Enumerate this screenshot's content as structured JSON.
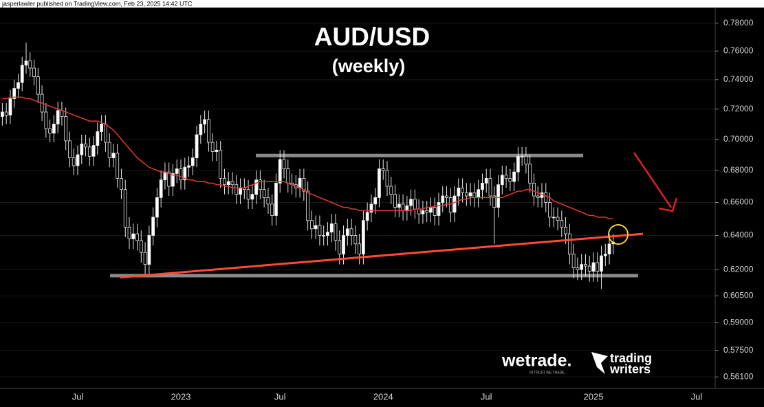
{
  "chart_data": {
    "type": "candlestick",
    "attribution": "jasperlawler published on TradingView.com, Feb 23, 2025 14:42 UTC",
    "title": "AUD/USD",
    "subtitle": "(weekly)",
    "watermarks": [
      "wetrade.",
      "IN TRUST WE TRADE.",
      "trading",
      "writers"
    ],
    "log_scale": true,
    "grid": true,
    "up_color": "#ffffff",
    "down_color": "#000000",
    "ma_color": "#e53935",
    "level_color": "#8a8a8a",
    "trend_color": "#ff4b33",
    "ylim": [
      0.555,
      0.797
    ],
    "yticks": [
      {
        "value": 0.78,
        "label": "0.78000"
      },
      {
        "value": 0.76,
        "label": "0.76000"
      },
      {
        "value": 0.74,
        "label": "0.74000"
      },
      {
        "value": 0.72,
        "label": "0.72000"
      },
      {
        "value": 0.7,
        "label": "0.70000"
      },
      {
        "value": 0.68,
        "label": "0.68000"
      },
      {
        "value": 0.66,
        "label": "0.66000"
      },
      {
        "value": 0.64,
        "label": "0.64000"
      },
      {
        "value": 0.62,
        "label": "0.62000"
      },
      {
        "value": 0.605,
        "label": "0.60500"
      },
      {
        "value": 0.59,
        "label": "0.59000"
      },
      {
        "value": 0.575,
        "label": "0.57500"
      },
      {
        "value": 0.561,
        "label": "0.56100"
      }
    ],
    "categories": [
      null,
      null,
      null,
      null,
      null,
      null,
      null,
      null,
      null,
      null,
      null,
      null,
      null,
      null,
      null,
      null,
      null,
      null,
      null,
      "Jul",
      null,
      null,
      null,
      null,
      null,
      null,
      null,
      null,
      null,
      null,
      null,
      null,
      null,
      null,
      null,
      null,
      null,
      null,
      null,
      null,
      null,
      null,
      null,
      null,
      null,
      "2023",
      null,
      null,
      null,
      null,
      null,
      null,
      null,
      null,
      null,
      null,
      null,
      null,
      null,
      null,
      null,
      null,
      null,
      null,
      null,
      null,
      null,
      null,
      null,
      null,
      "Jul",
      null,
      null,
      null,
      null,
      null,
      null,
      null,
      null,
      null,
      null,
      null,
      null,
      null,
      null,
      null,
      null,
      null,
      null,
      null,
      null,
      null,
      null,
      null,
      null,
      null,
      "2024",
      null,
      null,
      null,
      null,
      null,
      null,
      null,
      null,
      null,
      null,
      null,
      null,
      null,
      null,
      null,
      null,
      null,
      null,
      null,
      null,
      null,
      null,
      null,
      null,
      null,
      "Jul",
      null,
      null,
      null,
      null,
      null,
      null,
      null,
      null,
      null,
      null,
      null,
      null,
      null,
      null,
      null,
      null,
      null,
      null,
      null,
      null,
      null,
      null,
      null,
      null,
      null,
      null,
      "2025",
      null,
      null,
      null,
      null,
      null,
      null,
      null,
      null,
      null,
      null,
      null,
      null,
      null,
      null,
      null,
      null,
      null,
      null,
      null,
      null,
      null,
      null,
      null,
      null,
      null,
      "Jul",
      null
    ],
    "open": [
      0.715,
      0.718,
      0.716,
      0.727,
      0.734,
      0.738,
      0.75,
      0.753,
      0.748,
      0.742,
      0.73,
      0.718,
      0.707,
      0.704,
      0.71,
      0.719,
      0.715,
      0.699,
      0.688,
      0.683,
      0.69,
      0.697,
      0.695,
      0.689,
      0.696,
      0.705,
      0.71,
      0.698,
      0.688,
      0.691,
      0.675,
      0.668,
      0.645,
      0.638,
      0.641,
      0.637,
      0.63,
      0.623,
      0.64,
      0.651,
      0.663,
      0.674,
      0.679,
      0.67,
      0.678,
      0.681,
      0.674,
      0.682,
      0.683,
      0.688,
      0.703,
      0.71,
      0.713,
      0.698,
      0.692,
      0.693,
      0.675,
      0.671,
      0.673,
      0.671,
      0.665,
      0.669,
      0.668,
      0.662,
      0.665,
      0.674,
      0.668,
      0.663,
      0.659,
      0.652,
      0.672,
      0.687,
      0.681,
      0.672,
      0.671,
      0.669,
      0.675,
      0.667,
      0.649,
      0.644,
      0.646,
      0.64,
      0.64,
      0.642,
      0.647,
      0.637,
      0.629,
      0.64,
      0.644,
      0.64,
      0.635,
      0.629,
      0.649,
      0.654,
      0.659,
      0.663,
      0.681,
      0.68,
      0.67,
      0.665,
      0.657,
      0.659,
      0.655,
      0.658,
      0.662,
      0.656,
      0.653,
      0.655,
      0.654,
      0.657,
      0.652,
      0.66,
      0.664,
      0.663,
      0.654,
      0.664,
      0.669,
      0.666,
      0.664,
      0.666,
      0.663,
      0.668,
      0.672,
      0.675,
      0.664,
      0.657,
      0.671,
      0.677,
      0.675,
      0.673,
      0.679,
      0.689,
      0.689,
      0.684,
      0.672,
      0.664,
      0.663,
      0.666,
      0.66,
      0.651,
      0.651,
      0.649,
      0.645,
      0.641,
      0.629,
      0.621,
      0.62,
      0.623,
      0.622,
      0.619,
      0.624,
      0.619,
      0.628,
      0.629,
      0.635,
      null,
      null,
      null,
      null,
      null,
      null,
      null,
      null,
      null,
      null,
      null,
      null,
      null,
      null,
      null,
      null,
      null,
      null,
      null,
      null,
      null,
      null
    ],
    "high": [
      0.724,
      0.724,
      0.733,
      0.74,
      0.744,
      0.756,
      0.766,
      0.759,
      0.754,
      0.748,
      0.736,
      0.724,
      0.713,
      0.716,
      0.725,
      0.725,
      0.721,
      0.705,
      0.694,
      0.696,
      0.703,
      0.703,
      0.701,
      0.702,
      0.711,
      0.716,
      0.716,
      0.704,
      0.697,
      0.697,
      0.681,
      0.674,
      0.651,
      0.647,
      0.647,
      0.643,
      0.636,
      0.646,
      0.657,
      0.669,
      0.68,
      0.685,
      0.685,
      0.684,
      0.687,
      0.687,
      0.688,
      0.689,
      0.694,
      0.709,
      0.716,
      0.719,
      0.719,
      0.704,
      0.699,
      0.699,
      0.681,
      0.679,
      0.679,
      0.677,
      0.675,
      0.675,
      0.674,
      0.671,
      0.68,
      0.68,
      0.674,
      0.669,
      0.665,
      0.678,
      0.693,
      0.693,
      0.687,
      0.678,
      0.677,
      0.681,
      0.681,
      0.673,
      0.655,
      0.652,
      0.652,
      0.646,
      0.648,
      0.653,
      0.653,
      0.643,
      0.646,
      0.65,
      0.65,
      0.646,
      0.641,
      0.655,
      0.66,
      0.665,
      0.669,
      0.687,
      0.687,
      0.686,
      0.676,
      0.671,
      0.665,
      0.665,
      0.664,
      0.668,
      0.668,
      0.662,
      0.661,
      0.661,
      0.663,
      0.663,
      0.666,
      0.67,
      0.67,
      0.669,
      0.67,
      0.675,
      0.675,
      0.672,
      0.672,
      0.672,
      0.674,
      0.678,
      0.681,
      0.681,
      0.67,
      0.677,
      0.683,
      0.683,
      0.681,
      0.685,
      0.695,
      0.695,
      0.695,
      0.69,
      0.678,
      0.67,
      0.672,
      0.672,
      0.666,
      0.657,
      0.657,
      0.655,
      0.651,
      0.647,
      0.635,
      0.627,
      0.629,
      0.629,
      0.628,
      0.63,
      0.63,
      0.634,
      0.635,
      0.641,
      0.641,
      null,
      null,
      null,
      null,
      null,
      null,
      null,
      null,
      null,
      null,
      null,
      null,
      null,
      null,
      null,
      null,
      null,
      null,
      null,
      null,
      null,
      null
    ],
    "low": [
      0.709,
      0.71,
      0.71,
      0.721,
      0.728,
      0.732,
      0.744,
      0.742,
      0.736,
      0.724,
      0.712,
      0.701,
      0.698,
      0.698,
      0.704,
      0.709,
      0.693,
      0.682,
      0.677,
      0.677,
      0.684,
      0.689,
      0.683,
      0.683,
      0.69,
      0.699,
      0.692,
      0.682,
      0.682,
      0.669,
      0.662,
      0.639,
      0.632,
      0.632,
      0.631,
      0.624,
      0.617,
      0.617,
      0.634,
      0.645,
      0.657,
      0.668,
      0.664,
      0.664,
      0.672,
      0.668,
      0.668,
      0.676,
      0.677,
      0.682,
      0.697,
      0.704,
      0.692,
      0.686,
      0.686,
      0.669,
      0.665,
      0.665,
      0.665,
      0.659,
      0.659,
      0.662,
      0.656,
      0.656,
      0.659,
      0.662,
      0.657,
      0.653,
      0.646,
      0.646,
      0.666,
      0.675,
      0.666,
      0.665,
      0.663,
      0.663,
      0.661,
      0.643,
      0.638,
      0.638,
      0.634,
      0.634,
      0.634,
      0.636,
      0.631,
      0.623,
      0.623,
      0.634,
      0.634,
      0.629,
      0.623,
      0.623,
      0.643,
      0.648,
      0.653,
      0.657,
      0.674,
      0.664,
      0.659,
      0.651,
      0.651,
      0.649,
      0.649,
      0.652,
      0.65,
      0.647,
      0.647,
      0.648,
      0.648,
      0.646,
      0.646,
      0.654,
      0.657,
      0.648,
      0.648,
      0.658,
      0.66,
      0.658,
      0.658,
      0.657,
      0.657,
      0.662,
      0.666,
      0.658,
      0.635,
      0.651,
      0.665,
      0.669,
      0.667,
      0.667,
      0.673,
      0.683,
      0.678,
      0.666,
      0.658,
      0.657,
      0.657,
      0.654,
      0.645,
      0.645,
      0.643,
      0.639,
      0.635,
      0.623,
      0.615,
      0.614,
      0.614,
      0.616,
      0.613,
      0.613,
      0.613,
      0.609,
      0.622,
      0.623,
      0.629,
      null,
      null,
      null,
      null,
      null,
      null,
      null,
      null,
      null,
      null,
      null,
      null,
      null,
      null,
      null,
      null,
      null,
      null,
      null,
      null,
      null,
      null
    ],
    "close": [
      0.718,
      0.716,
      0.727,
      0.734,
      0.738,
      0.75,
      0.753,
      0.748,
      0.742,
      0.73,
      0.718,
      0.707,
      0.704,
      0.71,
      0.719,
      0.715,
      0.699,
      0.688,
      0.683,
      0.69,
      0.697,
      0.695,
      0.689,
      0.696,
      0.705,
      0.71,
      0.698,
      0.688,
      0.691,
      0.675,
      0.668,
      0.645,
      0.638,
      0.641,
      0.637,
      0.63,
      0.623,
      0.64,
      0.651,
      0.663,
      0.674,
      0.679,
      0.67,
      0.678,
      0.681,
      0.674,
      0.682,
      0.683,
      0.688,
      0.703,
      0.71,
      0.713,
      0.698,
      0.692,
      0.693,
      0.675,
      0.671,
      0.673,
      0.671,
      0.665,
      0.669,
      0.668,
      0.662,
      0.665,
      0.674,
      0.668,
      0.663,
      0.659,
      0.652,
      0.672,
      0.687,
      0.681,
      0.672,
      0.671,
      0.669,
      0.675,
      0.667,
      0.649,
      0.644,
      0.646,
      0.64,
      0.64,
      0.642,
      0.647,
      0.637,
      0.629,
      0.64,
      0.644,
      0.64,
      0.635,
      0.629,
      0.649,
      0.654,
      0.659,
      0.663,
      0.681,
      0.68,
      0.67,
      0.665,
      0.657,
      0.659,
      0.655,
      0.658,
      0.662,
      0.656,
      0.653,
      0.655,
      0.654,
      0.657,
      0.652,
      0.66,
      0.664,
      0.663,
      0.654,
      0.664,
      0.669,
      0.666,
      0.664,
      0.666,
      0.663,
      0.668,
      0.672,
      0.675,
      0.664,
      0.657,
      0.671,
      0.677,
      0.675,
      0.673,
      0.679,
      0.689,
      0.689,
      0.684,
      0.672,
      0.664,
      0.663,
      0.666,
      0.66,
      0.651,
      0.651,
      0.649,
      0.645,
      0.641,
      0.629,
      0.621,
      0.62,
      0.623,
      0.622,
      0.619,
      0.624,
      0.619,
      0.628,
      0.629,
      0.635,
      0.636,
      null,
      null,
      null,
      null,
      null,
      null,
      null,
      null,
      null,
      null,
      null,
      null,
      null,
      null,
      null,
      null,
      null,
      null,
      null,
      null,
      null,
      null
    ],
    "ma": [
      0.727,
      0.727,
      0.728,
      0.728,
      0.728,
      0.728,
      0.727,
      0.727,
      0.726,
      0.725,
      0.724,
      0.723,
      0.722,
      0.721,
      0.72,
      0.719,
      0.718,
      0.717,
      0.716,
      0.715,
      0.714,
      0.713,
      0.712,
      0.712,
      0.712,
      0.711,
      0.71,
      0.708,
      0.706,
      0.703,
      0.7,
      0.697,
      0.694,
      0.691,
      0.688,
      0.686,
      0.684,
      0.682,
      0.681,
      0.68,
      0.679,
      0.679,
      0.678,
      0.677,
      0.677,
      0.676,
      0.675,
      0.674,
      0.674,
      0.673,
      0.673,
      0.673,
      0.672,
      0.672,
      0.671,
      0.671,
      0.67,
      0.67,
      0.669,
      0.669,
      0.669,
      0.669,
      0.67,
      0.671,
      0.672,
      0.673,
      0.673,
      0.673,
      0.673,
      0.673,
      0.673,
      0.673,
      0.672,
      0.671,
      0.67,
      0.669,
      0.668,
      0.666,
      0.665,
      0.664,
      0.663,
      0.662,
      0.661,
      0.66,
      0.659,
      0.658,
      0.657,
      0.657,
      0.656,
      0.656,
      0.655,
      0.655,
      0.655,
      0.655,
      0.655,
      0.655,
      0.655,
      0.655,
      0.655,
      0.655,
      0.655,
      0.655,
      0.655,
      0.655,
      0.656,
      0.656,
      0.656,
      0.657,
      0.657,
      0.658,
      0.658,
      0.658,
      0.659,
      0.659,
      0.66,
      0.661,
      0.662,
      0.662,
      0.663,
      0.663,
      0.663,
      0.663,
      0.663,
      0.663,
      0.663,
      0.663,
      0.663,
      0.664,
      0.665,
      0.666,
      0.667,
      0.667,
      0.668,
      0.668,
      0.667,
      0.666,
      0.665,
      0.664,
      0.663,
      0.661,
      0.66,
      0.659,
      0.658,
      0.657,
      0.656,
      0.655,
      0.654,
      0.653,
      0.652,
      0.652,
      0.651,
      0.651,
      0.651,
      0.65,
      0.65,
      null,
      null,
      null,
      null,
      null,
      null,
      null,
      null,
      null,
      null,
      null,
      null,
      null,
      null,
      null,
      null,
      null,
      null,
      null,
      null,
      null,
      null
    ],
    "resistance": 0.6895,
    "support": 0.6165,
    "trendline": [
      0.6155,
      0.641
    ]
  }
}
